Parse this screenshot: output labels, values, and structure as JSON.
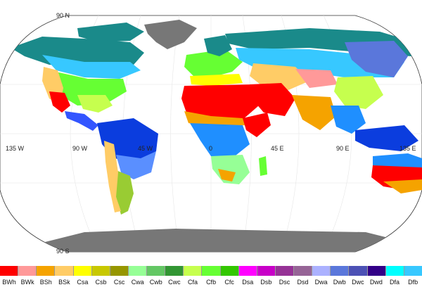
{
  "map": {
    "lat_labels": {
      "north": "90 N",
      "south": "90 S"
    },
    "lon_labels": [
      "135 W",
      "90 W",
      "45 W",
      "0",
      "45 E",
      "90 E",
      "135 E"
    ]
  },
  "legend": [
    {
      "code": "BWh",
      "color": "#ff0000"
    },
    {
      "code": "BWk",
      "color": "#ff9999"
    },
    {
      "code": "BSh",
      "color": "#f5a300"
    },
    {
      "code": "BSk",
      "color": "#ffcc66"
    },
    {
      "code": "Csa",
      "color": "#ffff00"
    },
    {
      "code": "Csb",
      "color": "#c8c800"
    },
    {
      "code": "Csc",
      "color": "#969600"
    },
    {
      "code": "Cwa",
      "color": "#96ff96"
    },
    {
      "code": "Cwb",
      "color": "#63c764"
    },
    {
      "code": "Cwc",
      "color": "#329633"
    },
    {
      "code": "Cfa",
      "color": "#c6ff4e"
    },
    {
      "code": "Cfb",
      "color": "#66ff33"
    },
    {
      "code": "Cfc",
      "color": "#33c701"
    },
    {
      "code": "Dsa",
      "color": "#ff00ff"
    },
    {
      "code": "Dsb",
      "color": "#c800c8"
    },
    {
      "code": "Dsc",
      "color": "#963296"
    },
    {
      "code": "Dsd",
      "color": "#966496"
    },
    {
      "code": "Dwa",
      "color": "#abb1ff"
    },
    {
      "code": "Dwb",
      "color": "#5a77db"
    },
    {
      "code": "Dwc",
      "color": "#4c51b5"
    },
    {
      "code": "Dwd",
      "color": "#320087"
    },
    {
      "code": "Dfa",
      "color": "#00ffff"
    },
    {
      "code": "Dfb",
      "color": "#37c8ff"
    }
  ]
}
